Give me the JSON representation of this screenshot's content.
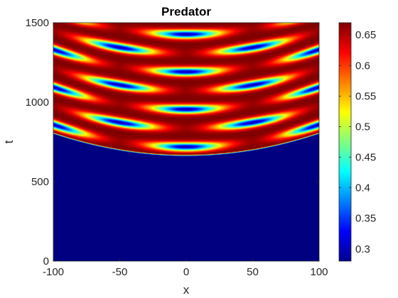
{
  "chart_data": {
    "type": "heatmap",
    "title": "Predator",
    "xlabel": "x",
    "ylabel": "t",
    "xlim": [
      -100,
      100
    ],
    "ylim": [
      0,
      1500
    ],
    "xticks": [
      -100,
      -50,
      0,
      50,
      100
    ],
    "yticks": [
      0,
      500,
      1000,
      1500
    ],
    "colorbar": {
      "range": [
        0.28,
        0.67
      ],
      "ticks": [
        0.3,
        0.35,
        0.4,
        0.45,
        0.5,
        0.55,
        0.6,
        0.65
      ],
      "colormap": "jet"
    },
    "values_summary": {
      "quiescent_value": 0.28,
      "peak_value": 0.67,
      "front_onset_t_center": 660,
      "front_onset_t_edges": 800
    },
    "grid": false,
    "legend": "colorbar-right"
  }
}
